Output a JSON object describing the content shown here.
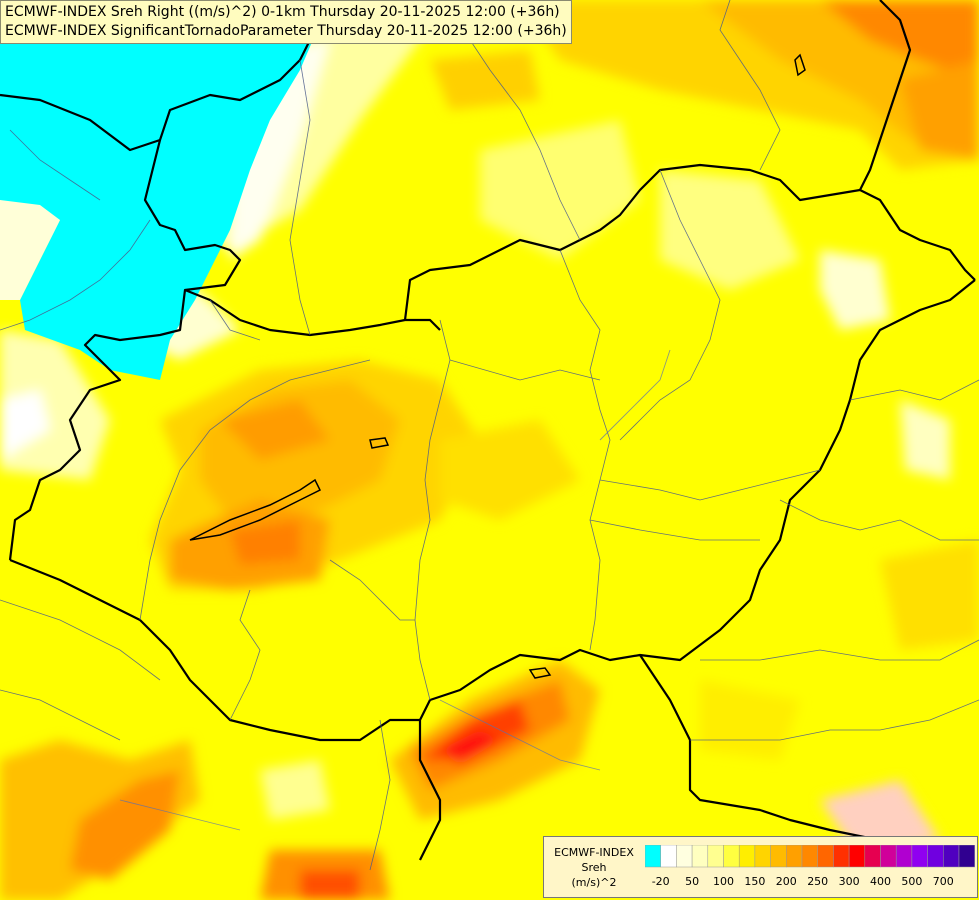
{
  "header": {
    "line1": "ECMWF-INDEX Sreh Right ((m/s)^2) 0-1km Thursday 20-11-2025 12:00 (+36h)",
    "line2": "ECMWF-INDEX SignificantTornadoParameter Thursday 20-11-2025 12:00 (+36h)"
  },
  "legend": {
    "model": "ECMWF-INDEX",
    "param": "Sreh",
    "unit": "(m/s)^2",
    "colors": [
      "#00ffff",
      "#ffffff",
      "#ffffe0",
      "#ffffc0",
      "#ffff90",
      "#ffff40",
      "#ffee00",
      "#ffd400",
      "#ffbb00",
      "#ffa000",
      "#ff8800",
      "#ff6600",
      "#ff3000",
      "#ff0000",
      "#e60050",
      "#d0009a",
      "#b000d0",
      "#9000f0",
      "#7000e0",
      "#5000c0",
      "#300090"
    ],
    "ticks": [
      "-20",
      "50",
      "100",
      "150",
      "200",
      "250",
      "300",
      "400",
      "500",
      "700"
    ]
  }
}
